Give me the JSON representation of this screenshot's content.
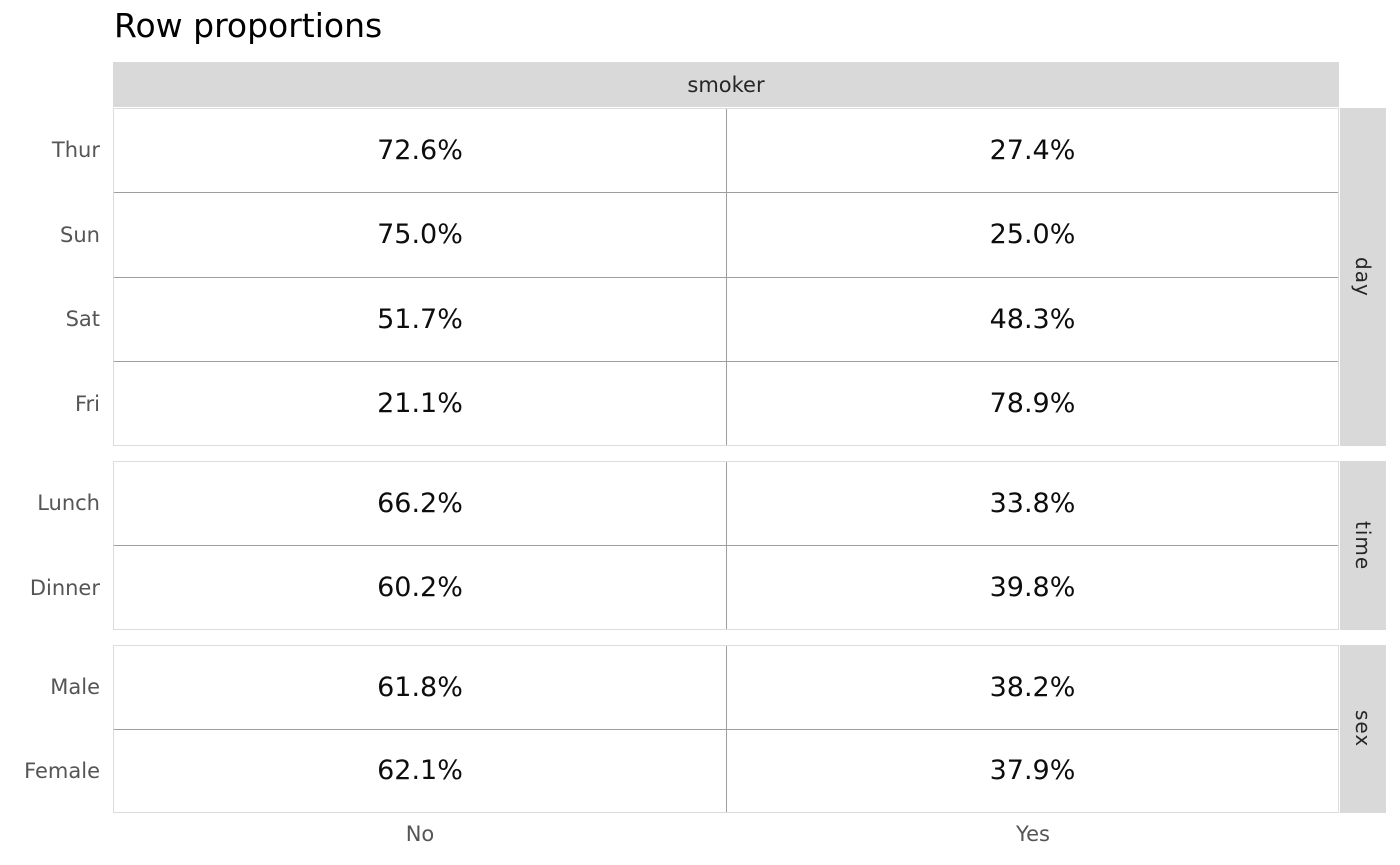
{
  "title": "Row proportions",
  "table": {
    "column_group_header": "smoker",
    "column_labels": {
      "no": "No",
      "yes": "Yes"
    },
    "sections": [
      {
        "name": "day",
        "rows": [
          {
            "label": "Thur",
            "values": [
              "72.6%",
              "27.4%"
            ]
          },
          {
            "label": "Sun",
            "values": [
              "75.0%",
              "25.0%"
            ]
          },
          {
            "label": "Sat",
            "values": [
              "51.7%",
              "48.3%"
            ]
          },
          {
            "label": "Fri",
            "values": [
              "21.1%",
              "78.9%"
            ]
          }
        ]
      },
      {
        "name": "time",
        "rows": [
          {
            "label": "Lunch",
            "values": [
              "66.2%",
              "33.8%"
            ]
          },
          {
            "label": "Dinner",
            "values": [
              "60.2%",
              "39.8%"
            ]
          }
        ]
      },
      {
        "name": "sex",
        "rows": [
          {
            "label": "Male",
            "values": [
              "61.8%",
              "38.2%"
            ]
          },
          {
            "label": "Female",
            "values": [
              "62.1%",
              "37.9%"
            ]
          }
        ]
      }
    ]
  },
  "colors": {
    "header_fill": "#d9d9d9",
    "strip_fill": "#d9d9d9",
    "inner_divider": "#9e9e9e",
    "outer_border": "#dcdcdc",
    "label_text": "#555555",
    "value_text": "#0d0d0d",
    "header_text": "#262626"
  },
  "chart_data": {
    "type": "table",
    "title": "Row proportions",
    "column_group": "smoker",
    "columns": [
      "No",
      "Yes"
    ],
    "unit": "%",
    "row_groups": [
      {
        "group": "day",
        "rows": [
          "Thur",
          "Sun",
          "Sat",
          "Fri"
        ],
        "values": [
          [
            72.6,
            27.4
          ],
          [
            75.0,
            25.0
          ],
          [
            51.7,
            48.3
          ],
          [
            21.1,
            78.9
          ]
        ]
      },
      {
        "group": "time",
        "rows": [
          "Lunch",
          "Dinner"
        ],
        "values": [
          [
            66.2,
            33.8
          ],
          [
            60.2,
            39.8
          ]
        ]
      },
      {
        "group": "sex",
        "rows": [
          "Male",
          "Female"
        ],
        "values": [
          [
            61.8,
            38.2
          ],
          [
            62.1,
            37.9
          ]
        ]
      }
    ]
  }
}
